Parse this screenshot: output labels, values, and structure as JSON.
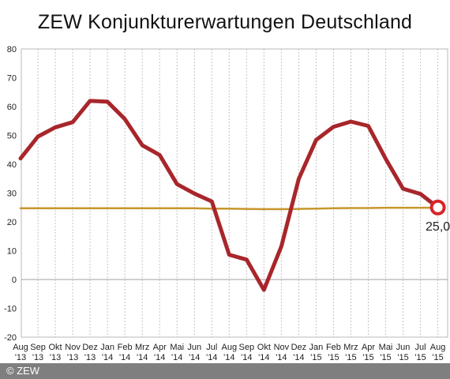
{
  "chart_data": {
    "type": "line",
    "title": "ZEW Konjunkturerwartungen Deutschland",
    "ylim": [
      -20,
      80
    ],
    "yticks": [
      -20,
      -10,
      0,
      10,
      20,
      30,
      40,
      50,
      60,
      70,
      80
    ],
    "grid": "vertical dashed",
    "categories": [
      {
        "month": "Aug",
        "year": "'13"
      },
      {
        "month": "Sep",
        "year": "'13"
      },
      {
        "month": "Okt",
        "year": "'13"
      },
      {
        "month": "Nov",
        "year": "'13"
      },
      {
        "month": "Dez",
        "year": "'13"
      },
      {
        "month": "Jan",
        "year": "'14"
      },
      {
        "month": "Feb",
        "year": "'14"
      },
      {
        "month": "Mrz",
        "year": "'14"
      },
      {
        "month": "Apr",
        "year": "'14"
      },
      {
        "month": "Mai",
        "year": "'14"
      },
      {
        "month": "Jun",
        "year": "'14"
      },
      {
        "month": "Jul",
        "year": "'14"
      },
      {
        "month": "Aug",
        "year": "'14"
      },
      {
        "month": "Sep",
        "year": "'14"
      },
      {
        "month": "Okt",
        "year": "'14"
      },
      {
        "month": "Nov",
        "year": "'14"
      },
      {
        "month": "Dez",
        "year": "'14"
      },
      {
        "month": "Jan",
        "year": "'15"
      },
      {
        "month": "Feb",
        "year": "'15"
      },
      {
        "month": "Mrz",
        "year": "'15"
      },
      {
        "month": "Apr",
        "year": "'15"
      },
      {
        "month": "Mai",
        "year": "'15"
      },
      {
        "month": "Jun",
        "year": "'15"
      },
      {
        "month": "Jul",
        "year": "'15"
      },
      {
        "month": "Aug",
        "year": "'15"
      }
    ],
    "series": [
      {
        "color": "#a8262b",
        "values": [
          42.0,
          49.6,
          52.8,
          54.6,
          62.0,
          61.7,
          55.7,
          46.6,
          43.2,
          33.1,
          29.8,
          27.1,
          8.6,
          6.9,
          -3.6,
          11.5,
          34.9,
          48.4,
          53.0,
          54.8,
          53.3,
          41.9,
          31.5,
          29.7,
          25.0
        ]
      },
      {
        "color": "#c8962e",
        "values": [
          24.7,
          24.7,
          24.7,
          24.7,
          24.7,
          24.7,
          24.7,
          24.7,
          24.7,
          24.7,
          24.7,
          24.6,
          24.6,
          24.5,
          24.4,
          24.4,
          24.5,
          24.6,
          24.7,
          24.8,
          24.8,
          24.9,
          24.9,
          24.9,
          24.9
        ]
      }
    ],
    "annotation": {
      "text": "25,0",
      "index": 24,
      "value": 25.0
    }
  },
  "copyright": "© ZEW"
}
